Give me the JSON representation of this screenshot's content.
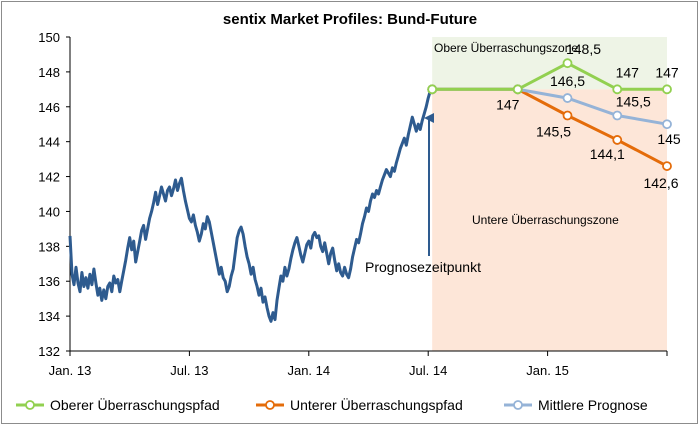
{
  "chart_data": {
    "type": "line",
    "title": "sentix Market Profiles: Bund-Future",
    "ylim": [
      132,
      150
    ],
    "y_ticks": [
      "132",
      "134",
      "136",
      "138",
      "140",
      "142",
      "144",
      "146",
      "148",
      "150"
    ],
    "x_ticks": [
      "Jan. 13",
      "Jul. 13",
      "Jan. 14",
      "Jul. 14",
      "Jan. 15"
    ],
    "x_tick_positions_months": [
      0,
      6,
      12,
      18,
      24
    ],
    "x_range_months": [
      0,
      30
    ],
    "historical": {
      "name": "Bund-Future",
      "color": "#2e5b8f",
      "points": [
        [
          0.0,
          138.6
        ],
        [
          0.1,
          136.4
        ],
        [
          0.2,
          135.8
        ],
        [
          0.3,
          136.8
        ],
        [
          0.4,
          135.9
        ],
        [
          0.5,
          135.4
        ],
        [
          0.6,
          136.5
        ],
        [
          0.7,
          135.7
        ],
        [
          0.8,
          136.2
        ],
        [
          0.9,
          135.6
        ],
        [
          1.0,
          136.4
        ],
        [
          1.1,
          135.8
        ],
        [
          1.2,
          136.7
        ],
        [
          1.3,
          135.9
        ],
        [
          1.4,
          135.2
        ],
        [
          1.5,
          135.6
        ],
        [
          1.6,
          134.9
        ],
        [
          1.7,
          135.5
        ],
        [
          1.8,
          135.0
        ],
        [
          1.9,
          135.7
        ],
        [
          2.0,
          135.9
        ],
        [
          2.1,
          135.4
        ],
        [
          2.2,
          136.3
        ],
        [
          2.3,
          135.9
        ],
        [
          2.4,
          136.1
        ],
        [
          2.5,
          135.4
        ],
        [
          2.6,
          136.0
        ],
        [
          2.7,
          136.6
        ],
        [
          2.8,
          137.2
        ],
        [
          2.9,
          137.9
        ],
        [
          3.0,
          138.5
        ],
        [
          3.1,
          137.8
        ],
        [
          3.2,
          138.3
        ],
        [
          3.3,
          137.1
        ],
        [
          3.4,
          137.7
        ],
        [
          3.5,
          138.3
        ],
        [
          3.6,
          138.9
        ],
        [
          3.7,
          139.2
        ],
        [
          3.8,
          138.4
        ],
        [
          3.9,
          139.0
        ],
        [
          4.0,
          139.6
        ],
        [
          4.1,
          140.0
        ],
        [
          4.2,
          140.5
        ],
        [
          4.3,
          141.1
        ],
        [
          4.4,
          140.4
        ],
        [
          4.5,
          140.9
        ],
        [
          4.6,
          141.4
        ],
        [
          4.7,
          141.0
        ],
        [
          4.8,
          140.6
        ],
        [
          4.9,
          141.2
        ],
        [
          5.0,
          141.4
        ],
        [
          5.1,
          140.9
        ],
        [
          5.2,
          141.3
        ],
        [
          5.3,
          141.8
        ],
        [
          5.4,
          141.2
        ],
        [
          5.5,
          141.6
        ],
        [
          5.6,
          141.9
        ],
        [
          5.7,
          141.2
        ],
        [
          5.8,
          140.6
        ],
        [
          5.9,
          140.1
        ],
        [
          6.0,
          139.6
        ],
        [
          6.1,
          139.4
        ],
        [
          6.2,
          139.8
        ],
        [
          6.3,
          139.2
        ],
        [
          6.4,
          138.8
        ],
        [
          6.5,
          138.3
        ],
        [
          6.6,
          138.7
        ],
        [
          6.7,
          139.3
        ],
        [
          6.8,
          139.0
        ],
        [
          6.9,
          139.7
        ],
        [
          7.0,
          139.4
        ],
        [
          7.1,
          138.8
        ],
        [
          7.2,
          138.2
        ],
        [
          7.3,
          137.6
        ],
        [
          7.4,
          137.0
        ],
        [
          7.5,
          136.4
        ],
        [
          7.6,
          136.8
        ],
        [
          7.7,
          136.2
        ],
        [
          7.8,
          136.0
        ],
        [
          7.9,
          135.4
        ],
        [
          8.0,
          135.7
        ],
        [
          8.1,
          136.3
        ],
        [
          8.2,
          136.7
        ],
        [
          8.3,
          137.6
        ],
        [
          8.4,
          138.5
        ],
        [
          8.5,
          138.9
        ],
        [
          8.6,
          139.1
        ],
        [
          8.7,
          138.7
        ],
        [
          8.8,
          138.0
        ],
        [
          8.9,
          137.4
        ],
        [
          9.0,
          137.0
        ],
        [
          9.1,
          136.4
        ],
        [
          9.2,
          136.8
        ],
        [
          9.3,
          136.1
        ],
        [
          9.4,
          135.7
        ],
        [
          9.5,
          135.2
        ],
        [
          9.6,
          135.6
        ],
        [
          9.7,
          134.8
        ],
        [
          9.8,
          135.1
        ],
        [
          9.9,
          134.5
        ],
        [
          10.0,
          134.0
        ],
        [
          10.1,
          133.7
        ],
        [
          10.2,
          134.2
        ],
        [
          10.3,
          133.8
        ],
        [
          10.4,
          134.9
        ],
        [
          10.5,
          135.6
        ],
        [
          10.6,
          136.3
        ],
        [
          10.7,
          136.0
        ],
        [
          10.8,
          136.8
        ],
        [
          10.9,
          136.3
        ],
        [
          11.0,
          136.7
        ],
        [
          11.1,
          137.3
        ],
        [
          11.2,
          137.8
        ],
        [
          11.3,
          138.2
        ],
        [
          11.4,
          138.5
        ],
        [
          11.5,
          138.0
        ],
        [
          11.6,
          137.5
        ],
        [
          11.7,
          137.1
        ],
        [
          11.8,
          137.6
        ],
        [
          11.9,
          138.1
        ],
        [
          12.0,
          138.3
        ],
        [
          12.1,
          137.9
        ],
        [
          12.2,
          138.6
        ],
        [
          12.3,
          138.8
        ],
        [
          12.4,
          138.5
        ],
        [
          12.5,
          138.6
        ],
        [
          12.6,
          138.0
        ],
        [
          12.7,
          137.7
        ],
        [
          12.8,
          138.2
        ],
        [
          12.9,
          137.6
        ],
        [
          13.0,
          137.0
        ],
        [
          13.1,
          137.6
        ],
        [
          13.2,
          137.9
        ],
        [
          13.3,
          137.2
        ],
        [
          13.4,
          136.6
        ],
        [
          13.5,
          137.0
        ],
        [
          13.6,
          136.5
        ],
        [
          13.7,
          136.3
        ],
        [
          13.8,
          136.8
        ],
        [
          13.9,
          136.4
        ],
        [
          14.0,
          136.2
        ],
        [
          14.1,
          136.7
        ],
        [
          14.2,
          137.4
        ],
        [
          14.3,
          137.9
        ],
        [
          14.4,
          138.4
        ],
        [
          14.5,
          138.2
        ],
        [
          14.6,
          138.7
        ],
        [
          14.7,
          139.3
        ],
        [
          14.8,
          139.7
        ],
        [
          14.9,
          140.2
        ],
        [
          15.0,
          140.0
        ],
        [
          15.1,
          140.6
        ],
        [
          15.2,
          141.0
        ],
        [
          15.3,
          140.8
        ],
        [
          15.4,
          141.2
        ],
        [
          15.5,
          141.0
        ],
        [
          15.6,
          141.4
        ],
        [
          15.7,
          141.8
        ],
        [
          15.8,
          142.1
        ],
        [
          15.9,
          142.4
        ],
        [
          16.0,
          142.2
        ],
        [
          16.1,
          142.0
        ],
        [
          16.2,
          142.5
        ],
        [
          16.3,
          142.3
        ],
        [
          16.4,
          142.8
        ],
        [
          16.5,
          143.2
        ],
        [
          16.6,
          143.6
        ],
        [
          16.7,
          143.9
        ],
        [
          16.8,
          144.2
        ],
        [
          16.9,
          143.8
        ],
        [
          17.0,
          144.4
        ],
        [
          17.1,
          144.9
        ],
        [
          17.2,
          145.4
        ],
        [
          17.3,
          145.0
        ],
        [
          17.4,
          144.6
        ],
        [
          17.5,
          145.0
        ],
        [
          17.6,
          144.7
        ],
        [
          17.7,
          145.2
        ],
        [
          17.8,
          145.6
        ],
        [
          17.9,
          146.0
        ],
        [
          18.0,
          146.5
        ],
        [
          18.1,
          146.9
        ],
        [
          18.2,
          147.0
        ]
      ]
    },
    "forecast_x": [
      18.2,
      22.5,
      25.0,
      27.5,
      30.0
    ],
    "series": [
      {
        "name": "Oberer Überraschungspfad",
        "color": "#92d050",
        "values": [
          147,
          147,
          148.5,
          147,
          147
        ],
        "labels": [
          "",
          "",
          "148,5",
          "147",
          "147"
        ]
      },
      {
        "name": "Unterer Überraschungspfad",
        "color": "#e46c0a",
        "values": [
          147,
          147,
          145.5,
          144.1,
          142.6
        ],
        "labels": [
          "",
          "147",
          "145,5",
          "144,1",
          "142,6"
        ]
      },
      {
        "name": "Mittlere Prognose",
        "color": "#95b3d7",
        "values": [
          147,
          147,
          146.5,
          145.5,
          145
        ],
        "labels": [
          "",
          "",
          "146,5",
          "145,5",
          "145"
        ]
      }
    ],
    "annotations": {
      "upper_zone": "Obere Überraschungszone",
      "lower_zone": "Untere Überraschungszone",
      "forecast_point": "Prognosezeitpunkt"
    },
    "zone_colors": {
      "upper": "#eef4e6",
      "lower": "#fde6d8"
    },
    "legend_position": "bottom",
    "grid": false
  }
}
